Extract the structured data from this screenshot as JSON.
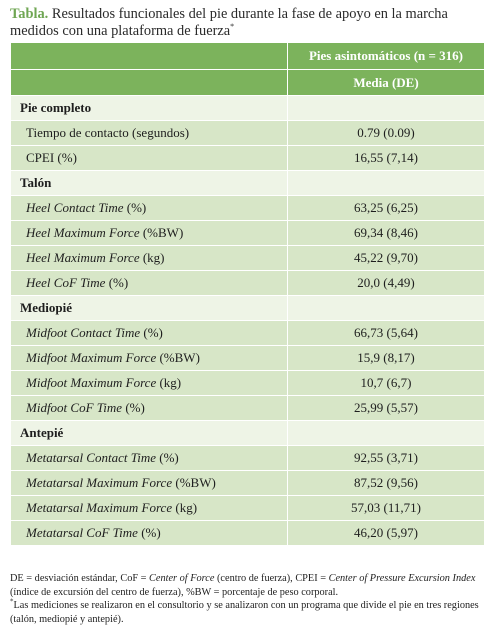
{
  "caption": {
    "lead": "Tabla.",
    "text": "Resultados funcionales del pie durante la fase de apoyo en la marcha medidos con una plataforma de fuerza",
    "mark": "*"
  },
  "header": {
    "group": "Pies asintomáticos (n = 316)",
    "stat": "Media (DE)"
  },
  "sections": [
    {
      "title": "Pie completo",
      "rows": [
        {
          "name": "Tiempo de contacto",
          "unit": "(segundos)",
          "name_italic": false,
          "value": "0.79 (0.09)"
        },
        {
          "name": "CPEI",
          "unit": "(%)",
          "name_italic": false,
          "value": "16,55 (7,14)"
        }
      ]
    },
    {
      "title": "Talón",
      "rows": [
        {
          "name": "Heel Contact Time",
          "unit": "(%)",
          "name_italic": true,
          "value": "63,25 (6,25)"
        },
        {
          "name": "Heel Maximum Force",
          "unit": "(%BW)",
          "name_italic": true,
          "value": "69,34 (8,46)"
        },
        {
          "name": "Heel Maximum Force",
          "unit": "(kg)",
          "name_italic": true,
          "value": "45,22 (9,70)"
        },
        {
          "name": "Heel CoF Time",
          "unit": "(%)",
          "name_italic": true,
          "value": "20,0 (4,49)"
        }
      ]
    },
    {
      "title": "Mediopié",
      "rows": [
        {
          "name": "Midfoot Contact Time",
          "unit": "(%)",
          "name_italic": true,
          "value": "66,73 (5,64)"
        },
        {
          "name": "Midfoot Maximum Force",
          "unit": "(%BW)",
          "name_italic": true,
          "value": "15,9 (8,17)"
        },
        {
          "name": "Midfoot Maximum Force",
          "unit": "(kg)",
          "name_italic": true,
          "value": "10,7 (6,7)"
        },
        {
          "name": "Midfoot CoF Time",
          "unit": "(%)",
          "name_italic": true,
          "value": "25,99 (5,57)"
        }
      ]
    },
    {
      "title": "Antepié",
      "rows": [
        {
          "name": "Metatarsal Contact Time",
          "unit": "(%)",
          "name_italic": true,
          "value": "92,55 (3,71)"
        },
        {
          "name": "Metatarsal Maximum Force",
          "unit": "(%BW)",
          "name_italic": true,
          "value": "87,52 (9,56)"
        },
        {
          "name": "Metatarsal Maximum Force",
          "unit": "(kg)",
          "name_italic": true,
          "value": "57,03 (11,71)"
        },
        {
          "name": "Metatarsal CoF Time",
          "unit": "(%)",
          "name_italic": true,
          "value": "46,20 (5,97)"
        }
      ]
    }
  ],
  "footnotes": {
    "abbrev": {
      "a": "DE = desviación estándar, CoF = ",
      "b": "Center of Force",
      "c": " (centro de fuerza), CPEI = ",
      "d": "Center of Pressure Excursion Index",
      "e": " (índice de excursión del centro de fuerza), %BW = porcentaje de peso corporal."
    },
    "note_mark": "*",
    "note": "Las mediciones se realizaron en el consultorio y se analizaron con un programa que divide el pie en tres regiones (talón, mediopié y antepié)."
  },
  "colors": {
    "header_green": "#7cb35c",
    "row_green": "#d7e6c7",
    "section_green": "#eef4e6",
    "lead_green": "#6fa653"
  }
}
